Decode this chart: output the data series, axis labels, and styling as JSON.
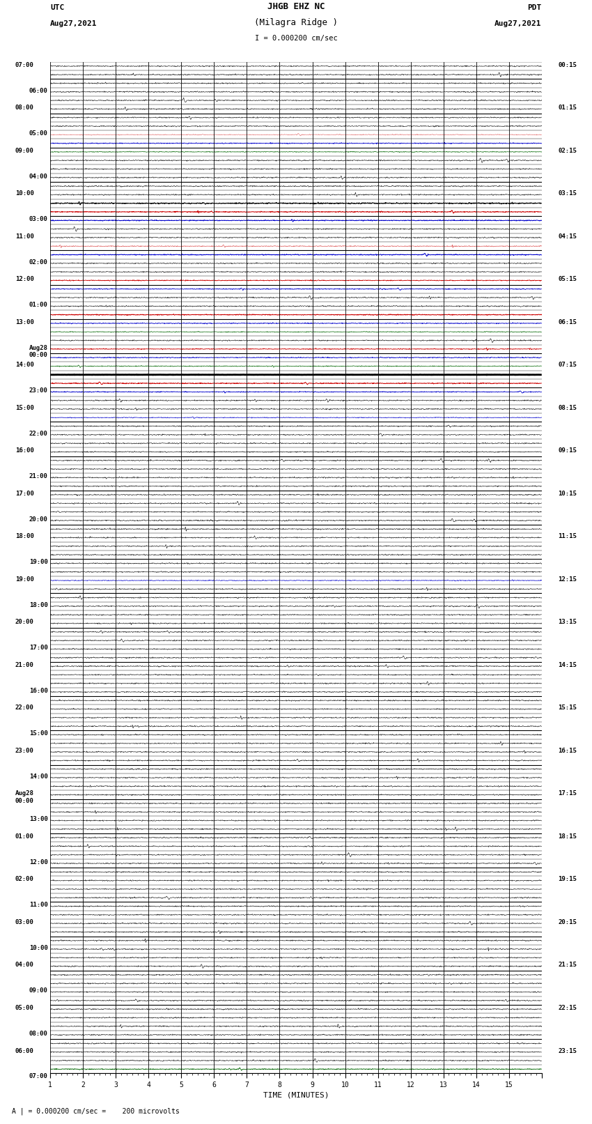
{
  "title_line1": "JHGB EHZ NC",
  "title_line2": "(Milagra Ridge )",
  "title_line3": "I = 0.000200 cm/sec",
  "left_header_line1": "UTC",
  "left_header_line2": "Aug27,2021",
  "right_header_line1": "PDT",
  "right_header_line2": "Aug27,2021",
  "xlabel": "TIME (MINUTES)",
  "footer": "| = 0.000200 cm/sec =    200 microvolts",
  "utc_labels": [
    "07:00",
    "",
    "",
    "",
    "",
    "08:00",
    "",
    "",
    "",
    "",
    "09:00",
    "",
    "",
    "",
    "",
    "10:00",
    "",
    "",
    "",
    "",
    "11:00",
    "",
    "",
    "",
    "",
    "12:00",
    "",
    "",
    "",
    "",
    "13:00",
    "",
    "",
    "",
    "",
    "14:00",
    "",
    "",
    "",
    "",
    "15:00",
    "",
    "",
    "",
    "",
    "16:00",
    "",
    "",
    "",
    "",
    "17:00",
    "",
    "",
    "",
    "",
    "18:00",
    "",
    "",
    "",
    "",
    "19:00",
    "",
    "",
    "",
    "",
    "20:00",
    "",
    "",
    "",
    "",
    "21:00",
    "",
    "",
    "",
    "",
    "22:00",
    "",
    "",
    "",
    "",
    "23:00",
    "",
    "",
    "",
    "",
    "Aug28\n00:00",
    "",
    "",
    "",
    "",
    "01:00",
    "",
    "",
    "",
    "",
    "02:00",
    "",
    "",
    "",
    "",
    "03:00",
    "",
    "",
    "",
    "",
    "04:00",
    "",
    "",
    "",
    "",
    "05:00",
    "",
    "",
    "",
    "",
    "06:00",
    "",
    ""
  ],
  "pdt_labels": [
    "00:15",
    "",
    "",
    "",
    "",
    "01:15",
    "",
    "",
    "",
    "",
    "02:15",
    "",
    "",
    "",
    "",
    "03:15",
    "",
    "",
    "",
    "",
    "04:15",
    "",
    "",
    "",
    "",
    "05:15",
    "",
    "",
    "",
    "",
    "06:15",
    "",
    "",
    "",
    "",
    "07:15",
    "",
    "",
    "",
    "",
    "08:15",
    "",
    "",
    "",
    "",
    "09:15",
    "",
    "",
    "",
    "",
    "10:15",
    "",
    "",
    "",
    "",
    "11:15",
    "",
    "",
    "",
    "",
    "12:15",
    "",
    "",
    "",
    "",
    "13:15",
    "",
    "",
    "",
    "",
    "14:15",
    "",
    "",
    "",
    "",
    "15:15",
    "",
    "",
    "",
    "",
    "16:15",
    "",
    "",
    "",
    "",
    "17:15",
    "",
    "",
    "",
    "",
    "18:15",
    "",
    "",
    "",
    "",
    "19:15",
    "",
    "",
    "",
    "",
    "20:15",
    "",
    "",
    "",
    "",
    "21:15",
    "",
    "",
    "",
    "",
    "22:15",
    "",
    "",
    "",
    "",
    "23:15",
    "",
    ""
  ],
  "num_rows": 118,
  "bg_color": "#ffffff",
  "noise_amp": 0.04,
  "colored_rows": {
    "thick_black": [
      45
    ],
    "red_solid": [
      21,
      28,
      32,
      46,
      56,
      84,
      101,
      107
    ],
    "blue_solid": [
      2,
      22,
      29,
      47,
      57,
      80,
      85,
      109
    ],
    "green_solid": [
      23,
      55,
      117
    ],
    "black_bold": [
      1,
      5,
      10,
      15,
      20,
      25,
      30,
      35,
      40,
      45,
      50,
      55,
      60,
      65,
      70,
      75,
      80,
      85,
      90,
      95,
      100,
      105,
      110,
      115
    ]
  }
}
